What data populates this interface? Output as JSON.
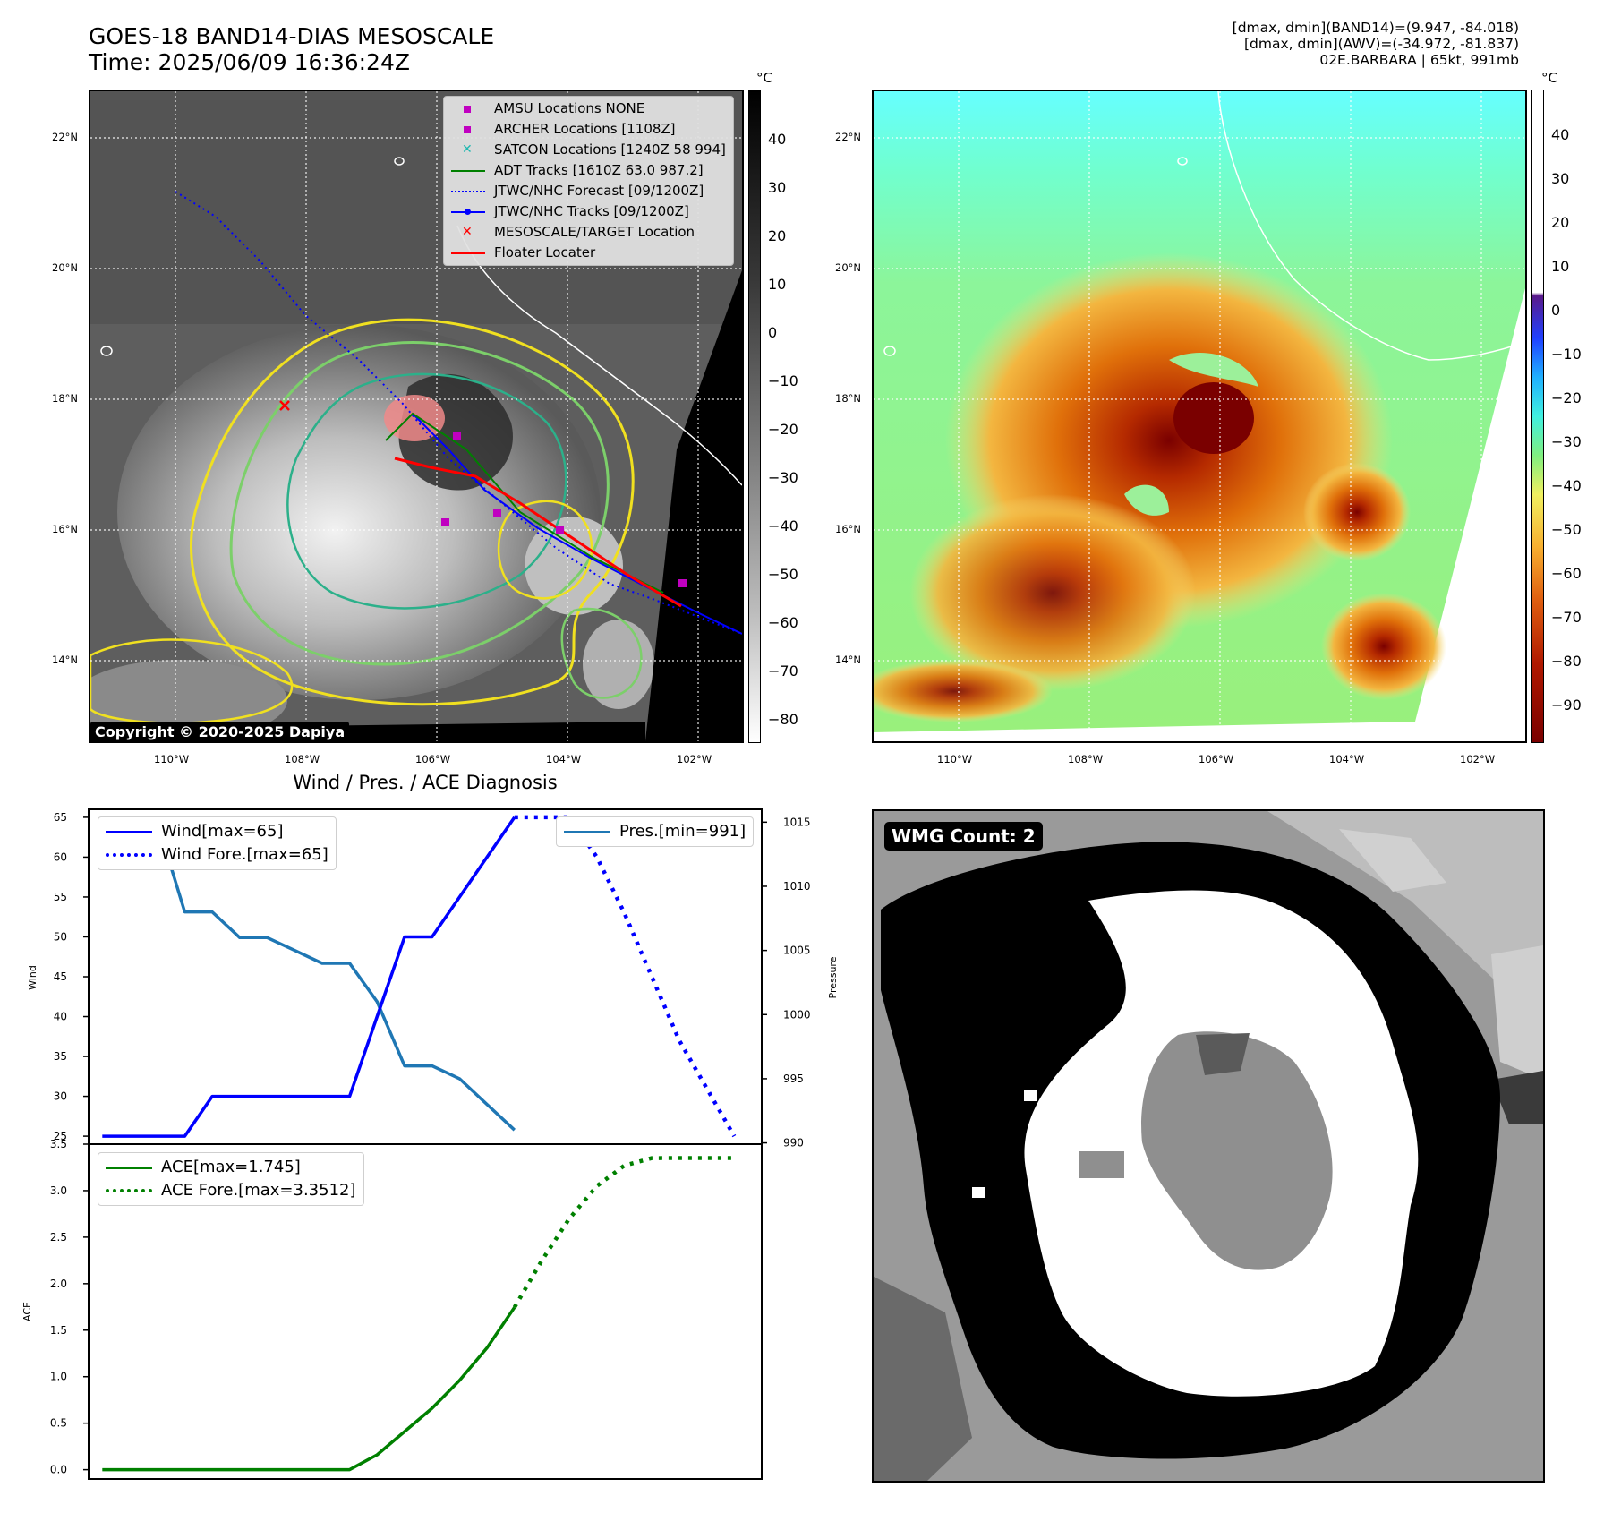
{
  "header": {
    "title_line1": "GOES-18 BAND14-DIAS MESOSCALE",
    "title_line2": "Time: 2025/06/09 16:36:24Z",
    "info_line1": "[dmax, dmin](BAND14)=(9.947, -84.018)",
    "info_line2": "[dmax, dmin](AWV)=(-34.972, -81.837)",
    "info_line3": "02E.BARBARA | 65kt, 991mb"
  },
  "map_axes": {
    "lat_labels": [
      "22°N",
      "20°N",
      "18°N",
      "16°N",
      "14°N"
    ],
    "lon_labels": [
      "110°W",
      "108°W",
      "106°W",
      "104°W",
      "102°W"
    ]
  },
  "ir_colorbar": {
    "unit": "°C",
    "ticks": [
      "40",
      "30",
      "20",
      "10",
      "0",
      "−10",
      "−20",
      "−30",
      "−40",
      "−50",
      "−60",
      "−70",
      "−80"
    ]
  },
  "awv_colorbar": {
    "unit": "°C",
    "ticks": [
      "40",
      "30",
      "20",
      "10",
      "0",
      "−10",
      "−20",
      "−30",
      "−40",
      "−50",
      "−60",
      "−70",
      "−80",
      "−90"
    ]
  },
  "map_legend": {
    "items": [
      {
        "label": "AMSU Locations NONE",
        "color": "#c000c0",
        "kind": "square"
      },
      {
        "label": "ARCHER Locations [1108Z]",
        "color": "#c000c0",
        "kind": "square"
      },
      {
        "label": "SATCON Locations [1240Z 58 994]",
        "color": "#20b8b0",
        "kind": "x"
      },
      {
        "label": "ADT Tracks [1610Z 63.0 987.2]",
        "color": "#008000",
        "kind": "line"
      },
      {
        "label": "JTWC/NHC Forecast [09/1200Z]",
        "color": "#0000ff",
        "kind": "dotted"
      },
      {
        "label": "JTWC/NHC Tracks [09/1200Z]",
        "color": "#0000ff",
        "kind": "linedot"
      },
      {
        "label": "MESOSCALE/TARGET Location",
        "color": "#ff0000",
        "kind": "x"
      },
      {
        "label": "Floater Locater",
        "color": "#ff0000",
        "kind": "line"
      }
    ]
  },
  "copyright": "Copyright © 2020-2025 Dapiya",
  "wmg": {
    "label": "WMG Count: 2"
  },
  "chart_data": [
    {
      "type": "line",
      "title": "Wind / Pres. / ACE Diagnosis",
      "ylabel": "Wind",
      "y2label": "Pressure",
      "ylim": [
        24,
        66
      ],
      "y2lim": [
        989.9,
        1016
      ],
      "yticks": [
        25,
        30,
        35,
        40,
        45,
        50,
        55,
        60,
        65
      ],
      "y2ticks": [
        990,
        995,
        1000,
        1005,
        1010,
        1015
      ],
      "series": [
        {
          "name": "Wind[max=65]",
          "color": "#0000ff",
          "style": "solid",
          "axis": "left",
          "x": [
            0,
            1,
            2,
            3,
            4,
            5,
            6,
            7,
            8,
            9,
            10,
            11,
            12,
            13,
            14,
            15
          ],
          "values": [
            25,
            25,
            25,
            25,
            30,
            30,
            30,
            30,
            30,
            30,
            40,
            50,
            50,
            55,
            60,
            65
          ]
        },
        {
          "name": "Wind Fore.[max=65]",
          "color": "#0000ff",
          "style": "dotted",
          "axis": "left",
          "x": [
            15,
            16,
            17,
            18,
            19,
            20,
            21,
            22,
            23
          ],
          "values": [
            65,
            65,
            65,
            60,
            53,
            45,
            37,
            31,
            25
          ]
        },
        {
          "name": "Pres.[min=991]",
          "color": "#1f77b4",
          "style": "solid",
          "axis": "right",
          "x": [
            0,
            1,
            2,
            3,
            4,
            5,
            6,
            7,
            8,
            9,
            10,
            11,
            12,
            13,
            14,
            15
          ],
          "values": [
            1015,
            1015,
            1015,
            1008,
            1008,
            1006,
            1006,
            1005,
            1004,
            1004,
            1001,
            996,
            996,
            995,
            993,
            991
          ]
        }
      ]
    },
    {
      "type": "line",
      "ylabel": "ACE",
      "ylim": [
        -0.1,
        3.5
      ],
      "yticks": [
        0.0,
        0.5,
        1.0,
        1.5,
        2.0,
        2.5,
        3.0,
        3.5
      ],
      "series": [
        {
          "name": "ACE[max=1.745]",
          "color": "#008000",
          "style": "solid",
          "x": [
            0,
            1,
            2,
            3,
            4,
            5,
            6,
            7,
            8,
            9,
            10,
            11,
            12,
            13,
            14,
            15
          ],
          "values": [
            0,
            0,
            0,
            0,
            0,
            0,
            0,
            0,
            0,
            0,
            0.16,
            0.41,
            0.66,
            0.96,
            1.31,
            1.745
          ]
        },
        {
          "name": "ACE Fore.[max=3.3512]",
          "color": "#008000",
          "style": "dotted",
          "x": [
            15,
            16,
            17,
            18,
            19,
            20,
            21,
            22,
            23
          ],
          "values": [
            1.745,
            2.25,
            2.7,
            3.05,
            3.27,
            3.35,
            3.3512,
            3.3512,
            3.3512
          ]
        }
      ]
    }
  ]
}
